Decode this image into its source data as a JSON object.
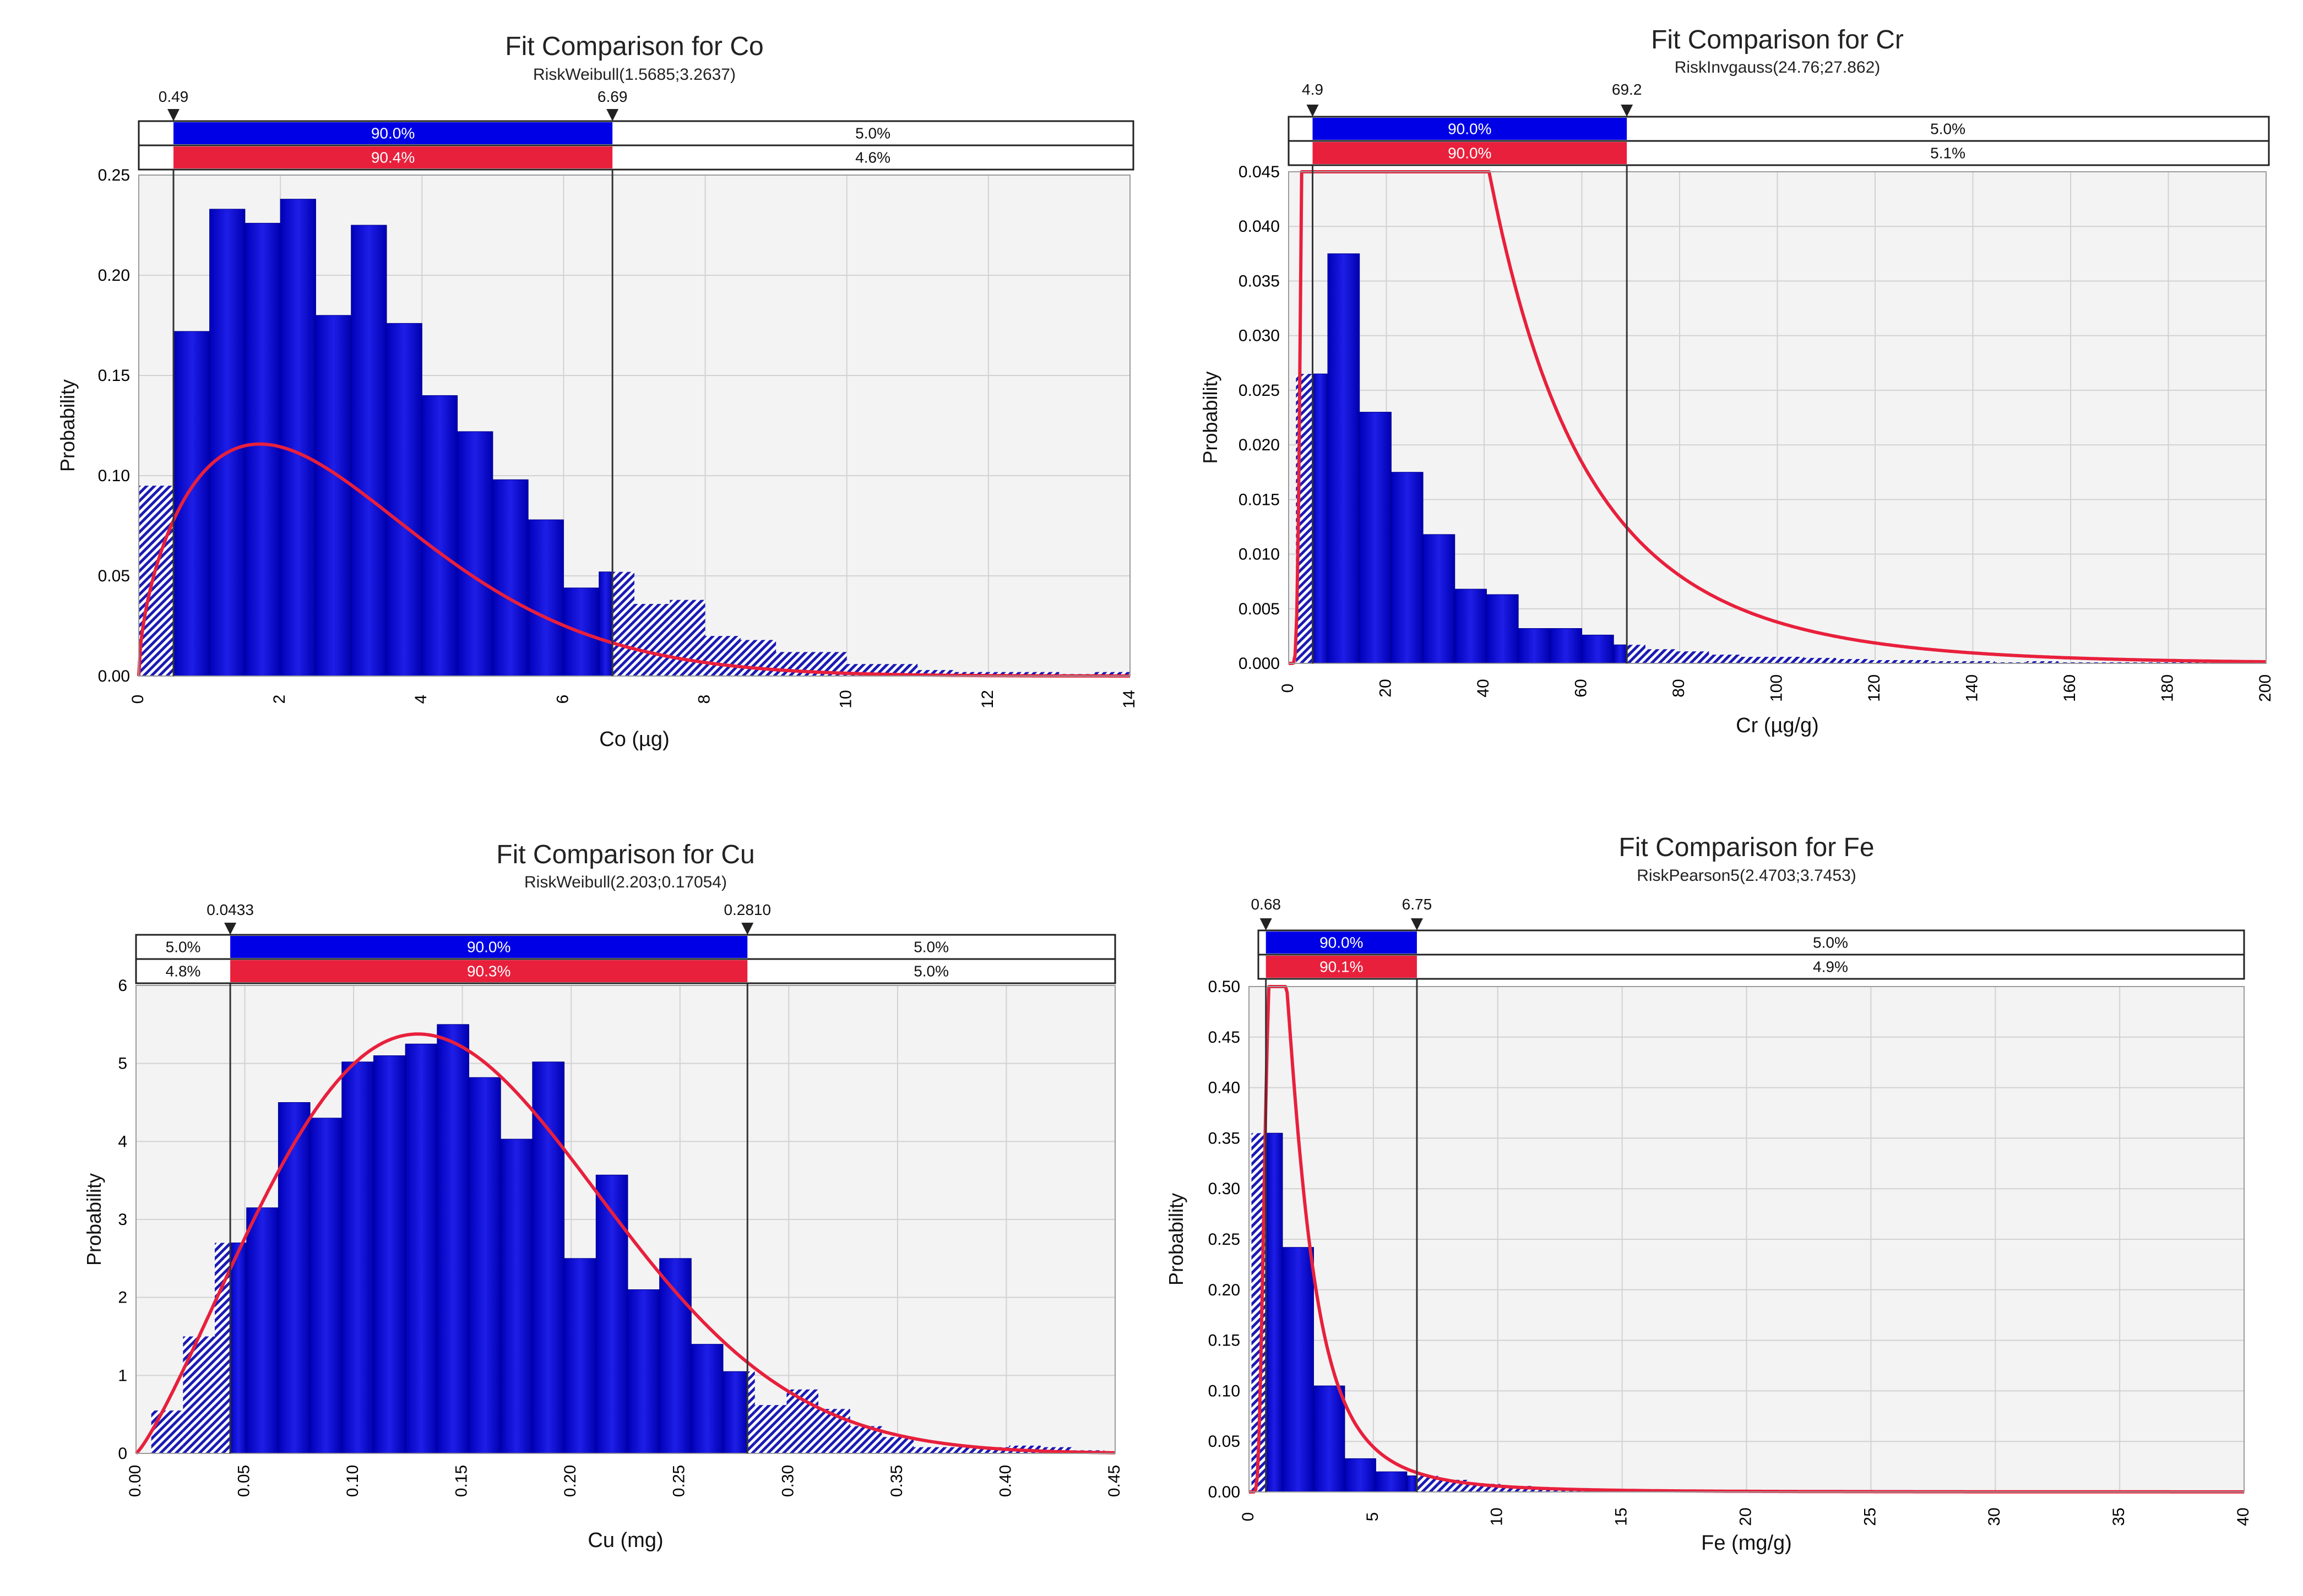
{
  "colors": {
    "plot_bg": "#f3f3f3",
    "grid": "#d2d2d2",
    "bar_inside": "#0000cc",
    "bar_inside_light": "#2a2aee",
    "bar_outside": "#1a1ab4",
    "curve": "#e8203c",
    "band_blue": "#0000e6",
    "band_red": "#e8203c",
    "band_text": "#ffffff",
    "axis_text": "#000000"
  },
  "chart_data": [
    {
      "type": "bar",
      "title": "Fit Comparison for Co",
      "subtitle": "RiskWeibull(1.5685;3.2637)",
      "xlabel": "Co (µg)",
      "ylabel": "Probability",
      "xlim": [
        0,
        14
      ],
      "ylim": [
        0,
        0.25
      ],
      "xticks": [
        0,
        2,
        4,
        6,
        8,
        10,
        12,
        14
      ],
      "xtick_labels": [
        "0",
        "2",
        "4",
        "6",
        "8",
        "10",
        "12",
        "14"
      ],
      "yticks": [
        0,
        0.05,
        0.1,
        0.15,
        0.2,
        0.25
      ],
      "ytick_labels": [
        "0.00",
        "0.05",
        "0.10",
        "0.15",
        "0.20",
        "0.25"
      ],
      "markers": {
        "left": 0.49,
        "right": 6.69,
        "left_label": "0.49",
        "right_label": "6.69"
      },
      "band_rows": [
        {
          "left": "",
          "mid": "90.0%",
          "right": "5.0%"
        },
        {
          "left": "",
          "mid": "90.4%",
          "right": "4.6%"
        }
      ],
      "bins": {
        "start": 0,
        "width": 0.5,
        "values": [
          0.095,
          0.172,
          0.233,
          0.226,
          0.238,
          0.18,
          0.225,
          0.176,
          0.14,
          0.122,
          0.098,
          0.078,
          0.044,
          0.052,
          0.036,
          0.038,
          0.02,
          0.018,
          0.012,
          0.012,
          0.006,
          0.006,
          0.003,
          0.002,
          0.002,
          0.002,
          0.001,
          0.002
        ]
      },
      "fit": {
        "dist": "weibull",
        "params": [
          1.5685,
          3.2637
        ],
        "scale": 0.5
      }
    },
    {
      "type": "bar",
      "title": "Fit Comparison for Cr",
      "subtitle": "RiskInvgauss(24.76;27.862)",
      "xlabel": "Cr (µg/g)",
      "ylabel": "Probability",
      "xlim": [
        0,
        200
      ],
      "ylim": [
        0,
        0.045
      ],
      "xticks": [
        0,
        20,
        40,
        60,
        80,
        100,
        120,
        140,
        160,
        180,
        200
      ],
      "xtick_labels": [
        "0",
        "20",
        "40",
        "60",
        "80",
        "100",
        "120",
        "140",
        "160",
        "180",
        "200"
      ],
      "yticks": [
        0,
        0.005,
        0.01,
        0.015,
        0.02,
        0.025,
        0.03,
        0.035,
        0.04,
        0.045
      ],
      "ytick_labels": [
        "0.000",
        "0.005",
        "0.010",
        "0.015",
        "0.020",
        "0.025",
        "0.030",
        "0.035",
        "0.040",
        "0.045"
      ],
      "markers": {
        "left": 4.9,
        "right": 69.2,
        "left_label": "4.9",
        "right_label": "69.2"
      },
      "band_rows": [
        {
          "left": "",
          "mid": "90.0%",
          "right": "5.0%"
        },
        {
          "left": "",
          "mid": "90.0%",
          "right": "5.1%"
        }
      ],
      "bins": {
        "start": 1.5,
        "width": 6.5,
        "values": [
          0.0265,
          0.0375,
          0.023,
          0.0175,
          0.0118,
          0.0068,
          0.0063,
          0.0032,
          0.0032,
          0.0026,
          0.0017,
          0.0013,
          0.0011,
          0.0008,
          0.0006,
          0.0006,
          0.0005,
          0.0004,
          0.0003,
          0.0003,
          0.0002,
          0.0002,
          0.0001,
          0.0002,
          0.0001,
          0.0001,
          0.0001,
          0.0001,
          0.0001,
          0.0001
        ]
      },
      "fit": {
        "dist": "invgauss",
        "params": [
          24.76,
          27.862
        ],
        "scale": 6.5
      }
    },
    {
      "type": "bar",
      "title": "Fit Comparison for Cu",
      "subtitle": "RiskWeibull(2.203;0.17054)",
      "xlabel": "Cu (mg)",
      "ylabel": "Probability",
      "xlim": [
        0,
        0.45
      ],
      "ylim": [
        0,
        6
      ],
      "xticks": [
        0,
        0.05,
        0.1,
        0.15,
        0.2,
        0.25,
        0.3,
        0.35,
        0.4,
        0.45
      ],
      "xtick_labels": [
        "0.00",
        "0.05",
        "0.10",
        "0.15",
        "0.20",
        "0.25",
        "0.30",
        "0.35",
        "0.40",
        "0.45"
      ],
      "yticks": [
        0,
        1,
        2,
        3,
        4,
        5,
        6
      ],
      "ytick_labels": [
        "0",
        "1",
        "2",
        "3",
        "4",
        "5",
        "6"
      ],
      "markers": {
        "left": 0.0433,
        "right": 0.281,
        "left_label": "0.0433",
        "right_label": "0.2810"
      },
      "band_rows": [
        {
          "left": "5.0%",
          "mid": "90.0%",
          "right": "5.0%"
        },
        {
          "left": "4.8%",
          "mid": "90.3%",
          "right": "5.0%"
        }
      ],
      "bins": {
        "start": 0.007,
        "width": 0.0146,
        "values": [
          0.55,
          1.5,
          2.7,
          3.15,
          4.5,
          4.3,
          5.02,
          5.1,
          5.25,
          5.5,
          4.82,
          4.03,
          5.02,
          2.5,
          3.57,
          2.1,
          2.5,
          1.4,
          1.05,
          0.62,
          0.82,
          0.57,
          0.35,
          0.21,
          0.08,
          0.08,
          0.08,
          0.1,
          0.08,
          0.04
        ]
      },
      "fit": {
        "dist": "weibull",
        "params": [
          2.203,
          0.17054
        ],
        "scale": 1
      }
    },
    {
      "type": "bar",
      "title": "Fit Comparison for Fe",
      "subtitle": "RiskPearson5(2.4703;3.7453)",
      "xlabel": "Fe (mg/g)",
      "ylabel": "Probability",
      "xlim": [
        0,
        40
      ],
      "ylim": [
        0,
        0.5
      ],
      "xticks": [
        0,
        5,
        10,
        15,
        20,
        25,
        30,
        35,
        40
      ],
      "xtick_labels": [
        "0",
        "5",
        "10",
        "15",
        "20",
        "25",
        "30",
        "35",
        "40"
      ],
      "yticks": [
        0,
        0.05,
        0.1,
        0.15,
        0.2,
        0.25,
        0.3,
        0.35,
        0.4,
        0.45,
        0.5
      ],
      "ytick_labels": [
        "0.00",
        "0.05",
        "0.10",
        "0.15",
        "0.20",
        "0.25",
        "0.30",
        "0.35",
        "0.40",
        "0.45",
        "0.50"
      ],
      "markers": {
        "left": 0.68,
        "right": 6.75,
        "left_label": "0.68",
        "right_label": "6.75"
      },
      "band_rows": [
        {
          "left": "",
          "mid": "90.0%",
          "right": "5.0%"
        },
        {
          "left": "",
          "mid": "90.1%",
          "right": "4.9%"
        }
      ],
      "bins": {
        "start": 0.1,
        "width": 1.25,
        "values": [
          0.355,
          0.242,
          0.105,
          0.033,
          0.02,
          0.016,
          0.012,
          0.008,
          0.006,
          0.004,
          0.003,
          0.003,
          0.002,
          0.002,
          0.002,
          0.001,
          0.001,
          0.001,
          0.001,
          0.001,
          0.001,
          0.001,
          0.001,
          0.001,
          0.001,
          0.001,
          0.001,
          0.001,
          0.001,
          0.001,
          0.001,
          0.001
        ]
      },
      "fit": {
        "dist": "pearson5",
        "params": [
          2.4703,
          3.7453
        ],
        "scale": 1.25
      }
    }
  ]
}
